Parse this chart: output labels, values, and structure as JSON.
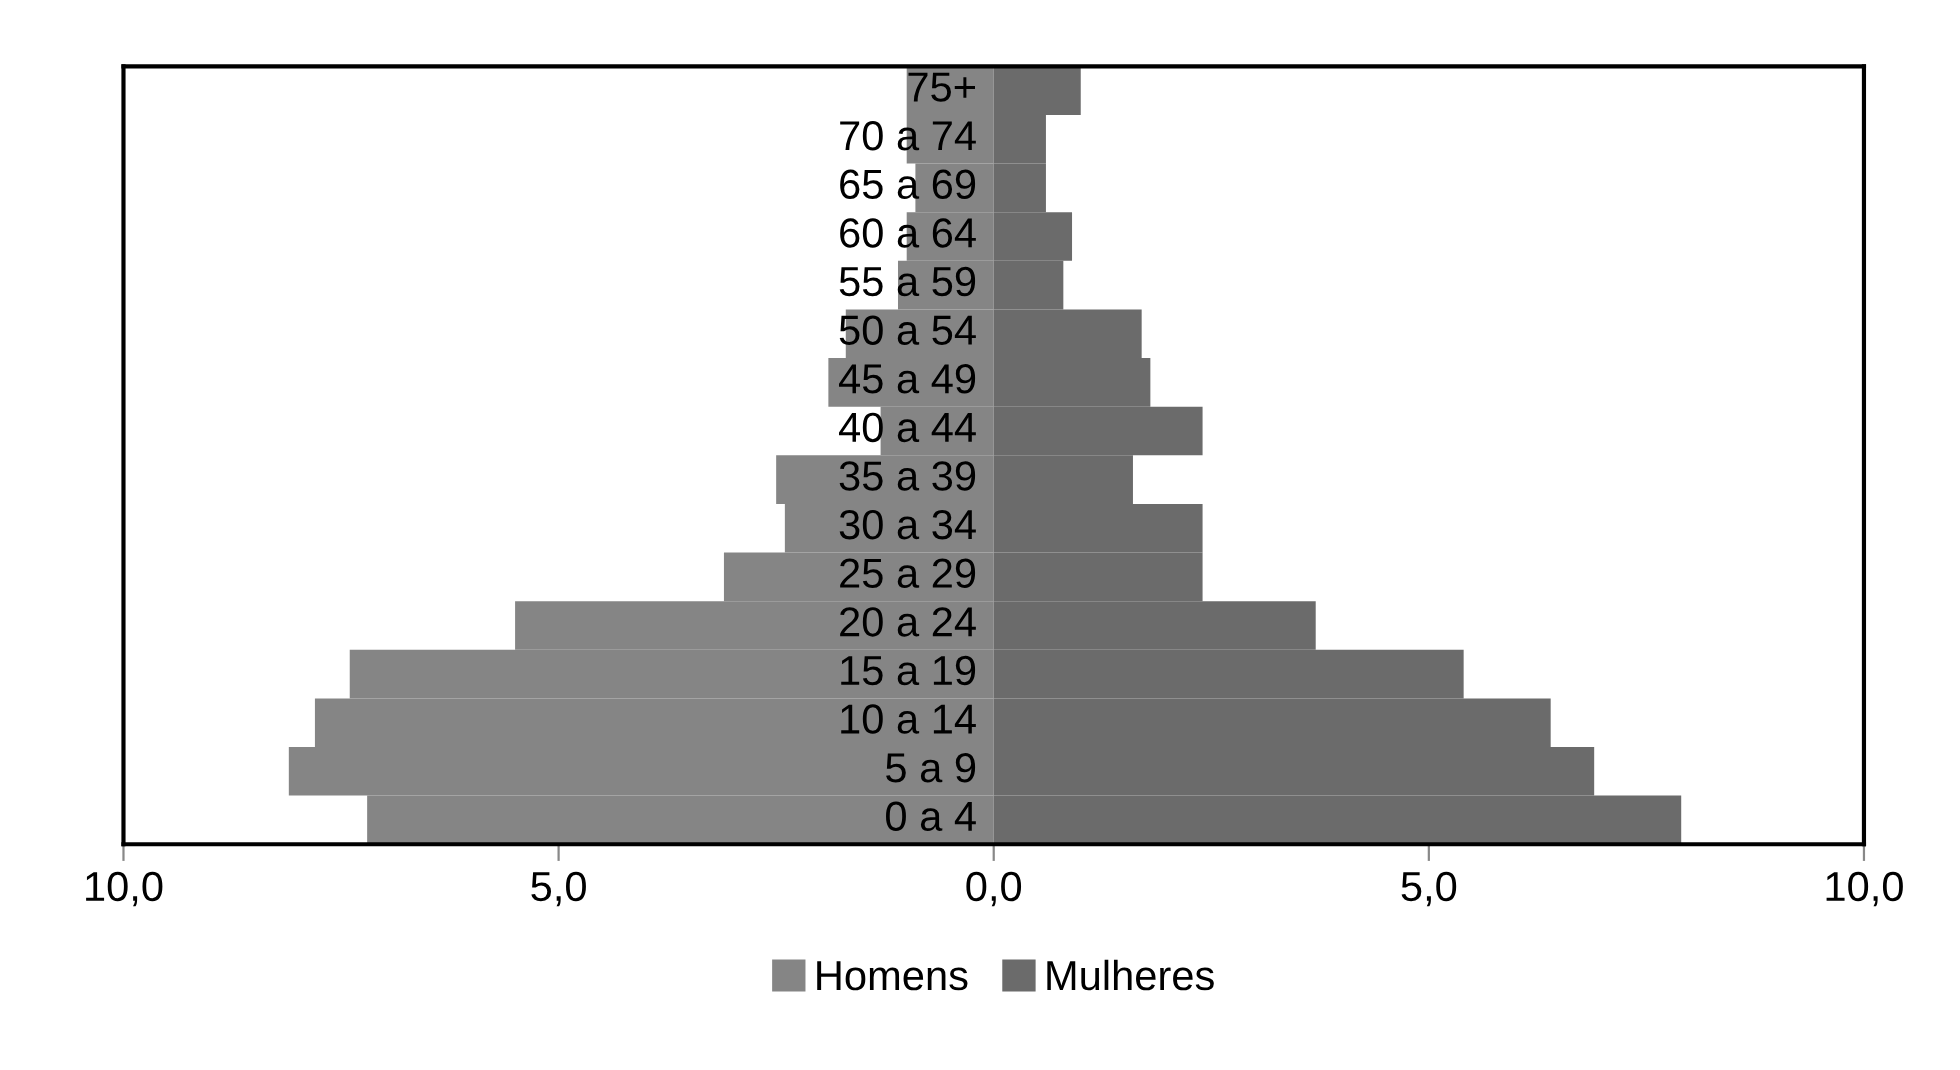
{
  "chart_data": {
    "type": "bar",
    "orientation": "horizontal",
    "stacked": true,
    "categories": [
      "75+",
      "70 a 74",
      "65 a 69",
      "60 a 64",
      "55 a 59",
      "50 a 54",
      "45 a 49",
      "40 a 44",
      "35 a 39",
      "30 a 34",
      "25 a 29",
      "20 a 24",
      "15 a 19",
      "10 a 14",
      "5 a 9",
      "0 a 4"
    ],
    "series": [
      {
        "name": "Homens",
        "color": "#858585",
        "values": [
          -1.0,
          -1.0,
          -0.9,
          -1.0,
          -1.1,
          -1.7,
          -1.9,
          -1.3,
          -2.5,
          -2.4,
          -3.1,
          -5.5,
          -7.4,
          -7.8,
          -8.1,
          -7.2
        ]
      },
      {
        "name": "Mulheres",
        "color": "#6b6b6b",
        "values": [
          1.0,
          0.6,
          0.6,
          0.9,
          0.8,
          1.7,
          1.8,
          2.4,
          1.6,
          2.4,
          2.4,
          3.7,
          5.4,
          6.4,
          6.9,
          7.9
        ]
      }
    ],
    "xlim": [
      -10,
      10
    ],
    "xticks": [
      {
        "value": -10,
        "label": "10,0"
      },
      {
        "value": -5,
        "label": "5,0"
      },
      {
        "value": 0,
        "label": "0,0"
      },
      {
        "value": 5,
        "label": "5,0"
      },
      {
        "value": 10,
        "label": "10,0"
      }
    ],
    "grid": false,
    "legend": "bottom"
  }
}
